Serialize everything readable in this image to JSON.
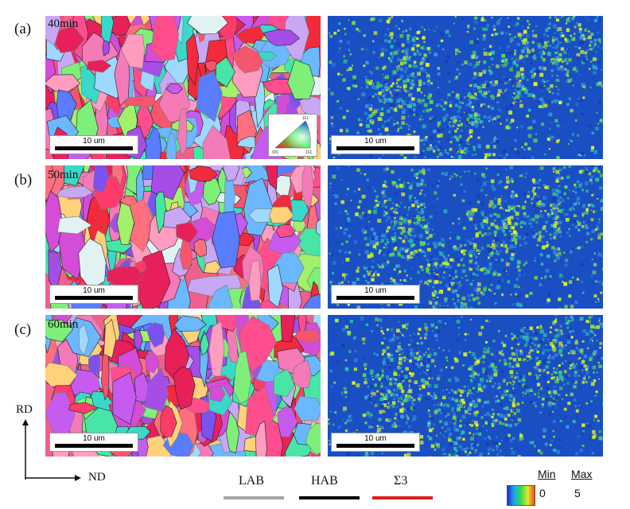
{
  "panels": [
    {
      "label": "(a)",
      "time": "40min"
    },
    {
      "label": "(b)",
      "time": "50min"
    },
    {
      "label": "(c)",
      "time": "60min"
    }
  ],
  "scale_bar_text": "10 um",
  "axes": {
    "vertical": "RD",
    "horizontal": "ND"
  },
  "boundary_legend": [
    {
      "name": "LAB",
      "color": "#a6a6a6"
    },
    {
      "name": "HAB",
      "color": "#000000"
    },
    {
      "name": "Σ3",
      "color": "#e01b1b"
    }
  ],
  "colorbar": {
    "min_label": "Min",
    "max_label": "Max",
    "min_value": "0",
    "max_value": "5"
  },
  "ipf_key": {
    "corners": [
      "001",
      "101",
      "111"
    ]
  },
  "colors": {
    "kam_background": "#1a4fc4",
    "kam_high": "#b6f02a"
  }
}
